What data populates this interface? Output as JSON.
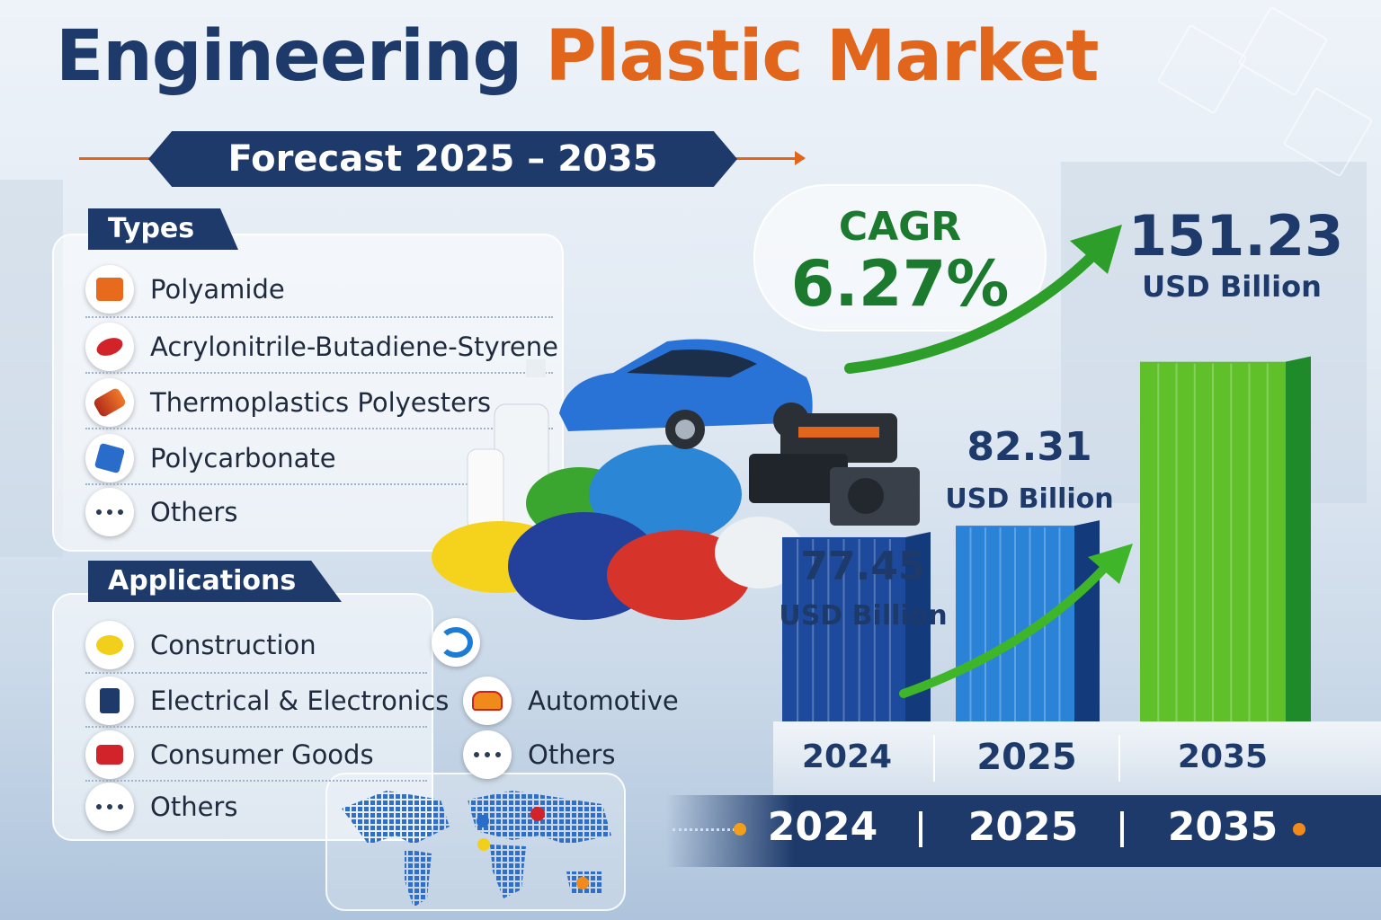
{
  "header": {
    "title_part1": "Engineering",
    "title_part2": "Plastic Market",
    "subtitle": "Forecast 2025 – 2035"
  },
  "types": {
    "heading": "Types",
    "items": [
      "Polyamide",
      "Acrylonitrile-Butadiene-Styrene",
      "Thermoplastics Polyesters",
      "Polycarbonate",
      "Others"
    ],
    "icons": [
      "polyamide-icon",
      "abs-pellets-icon",
      "polyester-icon",
      "polycarbonate-icon",
      "more-icon"
    ]
  },
  "applications": {
    "heading": "Applications",
    "col1": [
      "Construction",
      "Electrical & Electronics",
      "Consumer Goods",
      "Others"
    ],
    "col2": [
      "Automotive",
      "Others"
    ]
  },
  "chart_data": {
    "type": "bar",
    "title": "",
    "xlabel": "",
    "ylabel": "",
    "categories": [
      "2024",
      "2025",
      "2035"
    ],
    "series": [
      {
        "values": [
          77.45,
          82.31,
          151.23
        ],
        "labels": [
          "77.45",
          "82.31",
          "151.23"
        ],
        "colors": [
          "#1d4a9c",
          "#2b83d8",
          "#5fc02a"
        ]
      }
    ],
    "unit": "USD Billion",
    "ylim": [
      0,
      170
    ],
    "grid": false,
    "cagr": {
      "label": "CAGR",
      "value": "6.27%"
    }
  },
  "footer": {
    "years": [
      "2024",
      "2025",
      "2035"
    ]
  }
}
